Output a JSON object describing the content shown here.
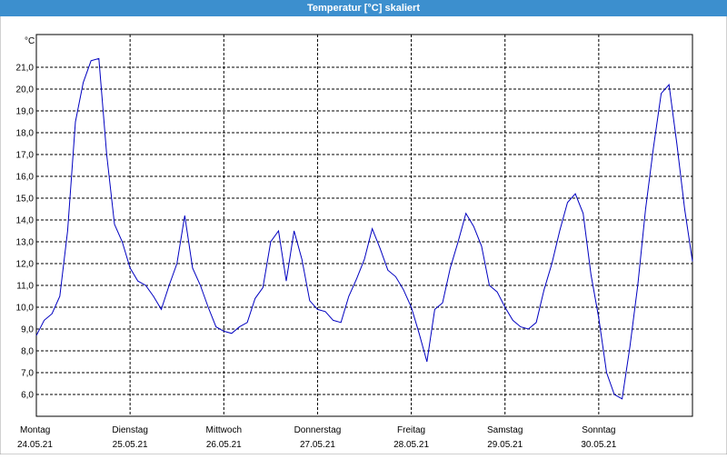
{
  "chart_data": {
    "type": "line",
    "title": "Temperatur [°C] skaliert",
    "y_unit": "°C",
    "x": [
      0,
      2,
      4,
      6,
      8,
      10,
      12,
      14,
      16,
      18,
      20,
      22,
      24,
      26,
      28,
      30,
      32,
      34,
      36,
      38,
      40,
      42,
      44,
      46,
      48,
      50,
      52,
      54,
      56,
      58,
      60,
      62,
      64,
      66,
      68,
      70,
      72,
      74,
      76,
      78,
      80,
      82,
      84,
      86,
      88,
      90,
      92,
      94,
      96,
      98,
      100,
      102,
      104,
      106,
      108,
      110,
      112,
      114,
      116,
      118,
      120,
      122,
      124,
      126,
      128,
      130,
      132,
      134,
      136,
      138,
      140,
      142,
      144,
      146,
      148,
      150,
      152,
      154,
      156,
      158,
      160,
      162,
      164,
      166,
      168
    ],
    "series": [
      {
        "name": "Temperatur",
        "color": "#0000c0",
        "values": [
          8.7,
          9.4,
          9.7,
          10.5,
          13.5,
          18.5,
          20.3,
          21.3,
          21.4,
          17,
          13.8,
          13,
          11.8,
          11.2,
          11,
          10.5,
          9.9,
          11,
          12,
          14.2,
          11.8,
          11,
          10,
          9.1,
          8.9,
          8.8,
          9.1,
          9.3,
          10.4,
          10.9,
          13,
          13.5,
          11.2,
          13.5,
          12.2,
          10.3,
          9.9,
          9.8,
          9.4,
          9.3,
          10.5,
          11.3,
          12.2,
          13.6,
          12.7,
          11.7,
          11.4,
          10.8,
          10,
          8.8,
          7.5,
          9.9,
          10.2,
          11.8,
          13,
          14.3,
          13.7,
          12.8,
          11,
          10.7,
          10,
          9.4,
          9.1,
          9,
          9.3,
          10.8,
          12,
          13.5,
          14.8,
          15.2,
          14.3,
          11.5,
          9.5,
          7,
          6,
          5.8,
          8.2,
          11,
          14.5,
          17.3,
          19.8,
          20.2,
          17.5,
          14.5,
          12.1
        ]
      }
    ],
    "xlim": [
      0,
      168
    ],
    "xticks": [
      {
        "value": 0,
        "label": "Montag",
        "date": "24.05.21"
      },
      {
        "value": 24,
        "label": "Dienstag",
        "date": "25.05.21"
      },
      {
        "value": 48,
        "label": "Mittwoch",
        "date": "26.05.21"
      },
      {
        "value": 72,
        "label": "Donnerstag",
        "date": "27.05.21"
      },
      {
        "value": 96,
        "label": "Freitag",
        "date": "28.05.21"
      },
      {
        "value": 120,
        "label": "Samstag",
        "date": "29.05.21"
      },
      {
        "value": 144,
        "label": "Sonntag",
        "date": "30.05.21"
      }
    ],
    "ylim": [
      5,
      22.5
    ],
    "yticks": [
      {
        "value": 6,
        "label": "6,0"
      },
      {
        "value": 7,
        "label": "7,0"
      },
      {
        "value": 8,
        "label": "8,0"
      },
      {
        "value": 9,
        "label": "9,0"
      },
      {
        "value": 10,
        "label": "10,0"
      },
      {
        "value": 11,
        "label": "11,0"
      },
      {
        "value": 12,
        "label": "12,0"
      },
      {
        "value": 13,
        "label": "13,0"
      },
      {
        "value": 14,
        "label": "14,0"
      },
      {
        "value": 15,
        "label": "15,0"
      },
      {
        "value": 16,
        "label": "16,0"
      },
      {
        "value": 17,
        "label": "17,0"
      },
      {
        "value": 18,
        "label": "18,0"
      },
      {
        "value": 19,
        "label": "19,0"
      },
      {
        "value": 20,
        "label": "20,0"
      },
      {
        "value": 21,
        "label": "21,0"
      }
    ],
    "grid": true
  }
}
